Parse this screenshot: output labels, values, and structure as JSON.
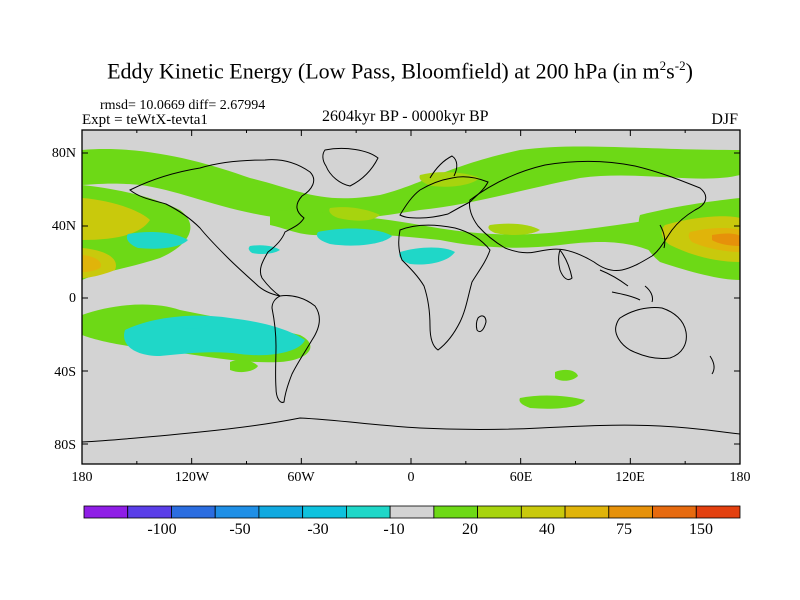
{
  "title": {
    "main": "Eddy Kinetic Energy (Low Pass, Bloomfield) at 200 hPa (in m",
    "exp1": "2",
    "mid": "s",
    "exp2": "-2",
    "close": ")"
  },
  "stats_line": "rmsd= 10.0669  diff= 2.67994",
  "experiment": "Expt = teWtX-tevta1",
  "period": "2604kyr BP - 0000kyr BP",
  "season": "DJF",
  "map": {
    "background_color": "#d3d3d3",
    "x_ticks": [
      "180",
      "120W",
      "60W",
      "0",
      "60E",
      "120E",
      "180"
    ],
    "y_ticks": [
      "80N",
      "40N",
      "0",
      "40S",
      "80S"
    ]
  },
  "colorbar": {
    "colors": [
      "#8f1ee6",
      "#5a3ee8",
      "#2b6de0",
      "#1f8fe6",
      "#11a9e0",
      "#0ec2de",
      "#1fd7c8",
      "#d3d3d3",
      "#6dd916",
      "#a7d40e",
      "#c9c90c",
      "#e0b40a",
      "#e6910a",
      "#e66a0f",
      "#e3400f"
    ],
    "labels": [
      "-100",
      "-50",
      "-30",
      "-10",
      "20",
      "40",
      "75",
      "150"
    ]
  }
}
